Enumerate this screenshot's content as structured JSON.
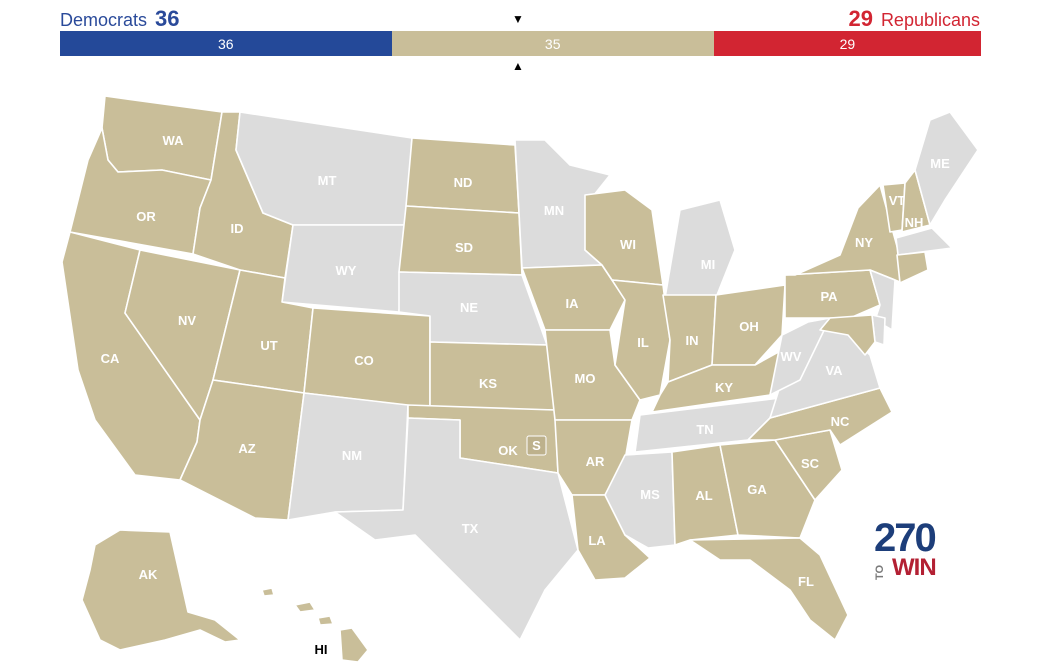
{
  "header": {
    "dem_name": "Democrats",
    "dem_count": "36",
    "rep_count": "29",
    "rep_name": "Republicans"
  },
  "seat_bar": {
    "dem": 36,
    "tossup": 35,
    "rep": 29,
    "dem_label": "36",
    "tossup_label": "35",
    "rep_label": "29",
    "marker_down": "▼",
    "marker_up": "▲"
  },
  "colors": {
    "democrat": "#244999",
    "tossup": "#c9be99",
    "republican": "#d22532",
    "no_election": "#dcdcdc"
  },
  "states": {
    "WA": {
      "label": "WA",
      "status": "tossup"
    },
    "OR": {
      "label": "OR",
      "status": "tossup"
    },
    "CA": {
      "label": "CA",
      "status": "tossup"
    },
    "NV": {
      "label": "NV",
      "status": "tossup"
    },
    "ID": {
      "label": "ID",
      "status": "tossup"
    },
    "MT": {
      "label": "MT",
      "status": "none"
    },
    "WY": {
      "label": "WY",
      "status": "none"
    },
    "UT": {
      "label": "UT",
      "status": "tossup"
    },
    "AZ": {
      "label": "AZ",
      "status": "tossup"
    },
    "CO": {
      "label": "CO",
      "status": "tossup"
    },
    "NM": {
      "label": "NM",
      "status": "none"
    },
    "ND": {
      "label": "ND",
      "status": "tossup"
    },
    "SD": {
      "label": "SD",
      "status": "tossup"
    },
    "NE": {
      "label": "NE",
      "status": "none"
    },
    "KS": {
      "label": "KS",
      "status": "tossup"
    },
    "OK": {
      "label": "OK",
      "status": "tossup"
    },
    "TX": {
      "label": "TX",
      "status": "none"
    },
    "MN": {
      "label": "MN",
      "status": "none"
    },
    "IA": {
      "label": "IA",
      "status": "tossup"
    },
    "MO": {
      "label": "MO",
      "status": "tossup"
    },
    "AR": {
      "label": "AR",
      "status": "tossup"
    },
    "LA": {
      "label": "LA",
      "status": "tossup"
    },
    "WI": {
      "label": "WI",
      "status": "tossup"
    },
    "IL": {
      "label": "IL",
      "status": "tossup"
    },
    "MI": {
      "label": "MI",
      "status": "none"
    },
    "IN": {
      "label": "IN",
      "status": "tossup"
    },
    "OH": {
      "label": "OH",
      "status": "tossup"
    },
    "KY": {
      "label": "KY",
      "status": "tossup"
    },
    "TN": {
      "label": "TN",
      "status": "none"
    },
    "MS": {
      "label": "MS",
      "status": "none"
    },
    "AL": {
      "label": "AL",
      "status": "tossup"
    },
    "GA": {
      "label": "GA",
      "status": "tossup"
    },
    "FL": {
      "label": "FL",
      "status": "tossup"
    },
    "SC": {
      "label": "SC",
      "status": "tossup"
    },
    "NC": {
      "label": "NC",
      "status": "tossup"
    },
    "VA": {
      "label": "VA",
      "status": "none"
    },
    "WV": {
      "label": "WV",
      "status": "none"
    },
    "PA": {
      "label": "PA",
      "status": "tossup"
    },
    "NY": {
      "label": "NY",
      "status": "tossup"
    },
    "VT": {
      "label": "VT",
      "status": "tossup"
    },
    "NH": {
      "label": "NH",
      "status": "tossup"
    },
    "ME": {
      "label": "ME",
      "status": "none"
    },
    "MA": {
      "label": "",
      "status": "none"
    },
    "CT": {
      "label": "",
      "status": "tossup"
    },
    "NJ": {
      "label": "",
      "status": "none"
    },
    "DE": {
      "label": "",
      "status": "none"
    },
    "MD": {
      "label": "",
      "status": "tossup"
    },
    "AK": {
      "label": "AK",
      "status": "tossup"
    },
    "HI": {
      "label": "HI",
      "status": "tossup"
    }
  },
  "special_election": {
    "state": "OK",
    "label": "S"
  },
  "logo": {
    "top": "270",
    "to": "TO",
    "win": "WIN"
  }
}
